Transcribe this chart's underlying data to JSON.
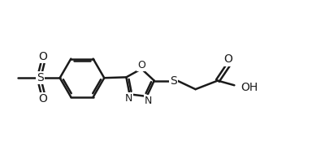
{
  "background_color": "#ffffff",
  "line_color": "#1a1a1a",
  "bond_width": 1.8,
  "figsize": [
    3.84,
    2.0
  ],
  "dpi": 100,
  "xlim": [
    0.0,
    10.0
  ],
  "ylim": [
    0.0,
    5.2
  ]
}
